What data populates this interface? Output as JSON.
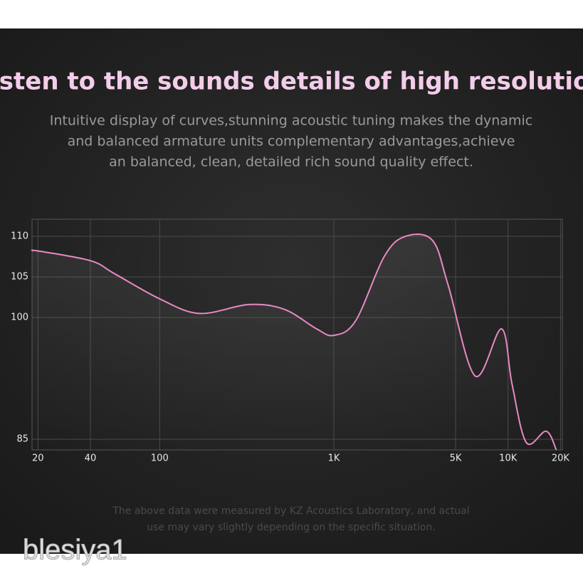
{
  "chart_data": {
    "type": "line",
    "title": "Listen to the sounds details of high resolution",
    "subtitle": [
      "Intuitive display of curves,stunning acoustic tuning makes the dynamic",
      "and balanced armature units complementary advantages,achieve",
      "an balanced, clean, detailed rich sound quality effect."
    ],
    "note": [
      "The above data were measured by KZ Acoustics Laboratory, and actual",
      "use may vary slightly depending on the specific situation."
    ],
    "watermark": "blesiya1",
    "x_scale": "log",
    "xlim": [
      18.5,
      20500
    ],
    "ylim": [
      83.7,
      112.1
    ],
    "xticks": [
      20,
      40,
      100,
      {
        "value": 1000,
        "label": "1K"
      },
      {
        "value": 5000,
        "label": "5K"
      },
      {
        "value": 10000,
        "label": "10K"
      },
      {
        "value": 20000,
        "label": "20K"
      }
    ],
    "yticks": [
      85,
      100,
      105,
      110
    ],
    "grid": true,
    "series": [
      {
        "color": "#e889c4",
        "x": [
          18.5,
          20,
          40,
          55,
          100,
          169,
          326,
          521,
          796,
          1000,
          1334,
          1944,
          2577,
          3681,
          4529,
          6472,
          9163,
          10540,
          12736,
          16560,
          18920
        ],
        "values": [
          108.2,
          108.2,
          107.0,
          105.4,
          102.3,
          100.5,
          101.6,
          101.0,
          98.6,
          97.8,
          99.6,
          107.5,
          110.0,
          109.5,
          104.0,
          92.8,
          98.6,
          91.8,
          84.6,
          86.0,
          83.7
        ]
      }
    ]
  }
}
